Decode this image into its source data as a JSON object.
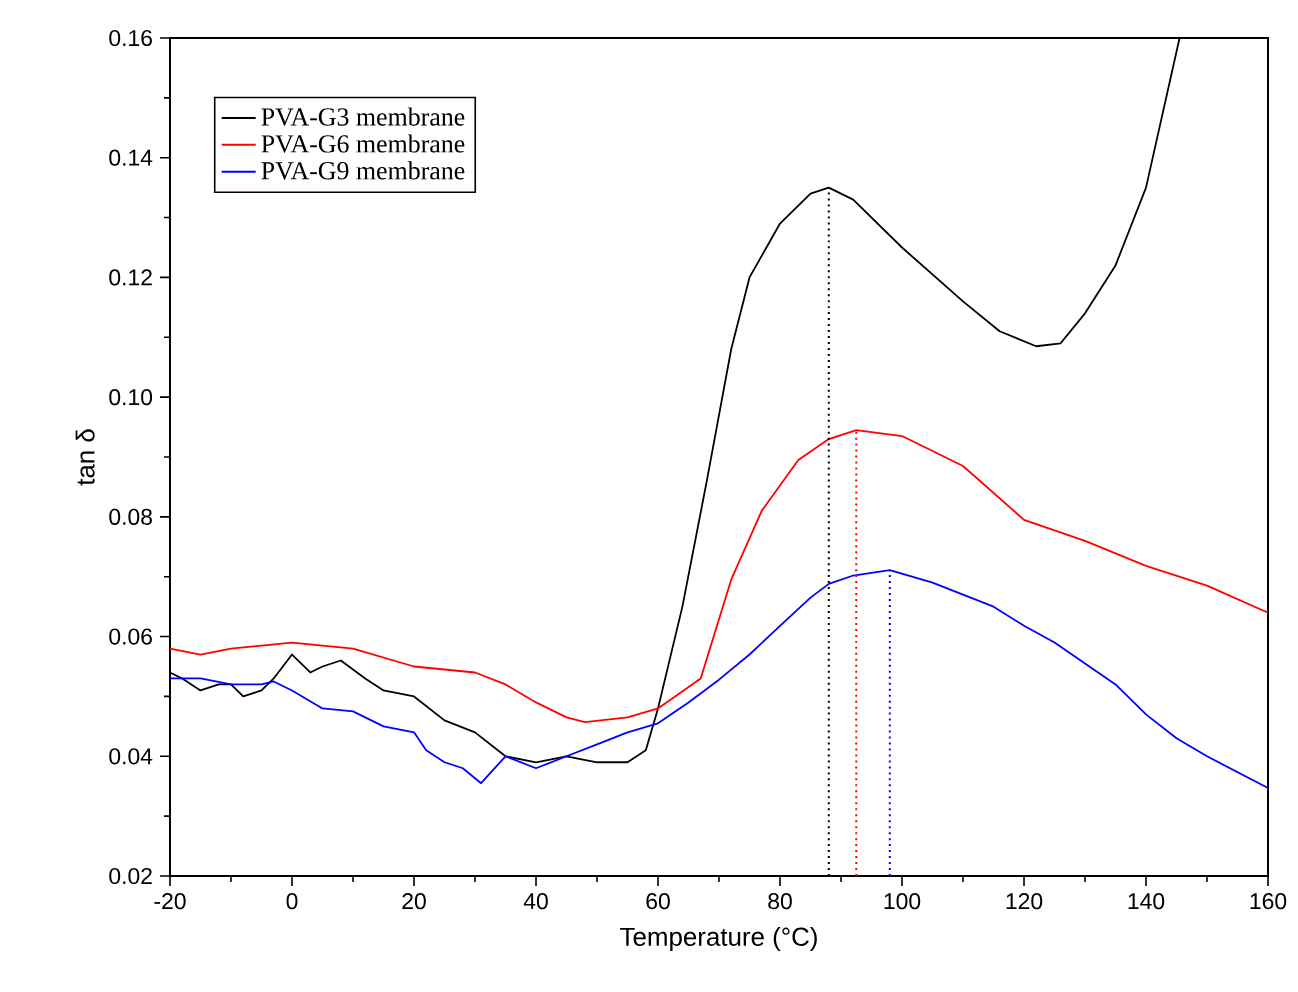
{
  "chart_data": {
    "type": "line",
    "xlabel": "Temperature (°C)",
    "ylabel": "tan δ",
    "xlim": [
      -20,
      160
    ],
    "ylim": [
      0.02,
      0.16
    ],
    "xticks": [
      -20,
      0,
      20,
      40,
      60,
      80,
      100,
      120,
      140,
      160
    ],
    "yticks": [
      0.02,
      0.04,
      0.06,
      0.08,
      {
        "value": 0.1,
        "label": "0.10"
      },
      0.12,
      0.14,
      0.16
    ],
    "legend": "top left",
    "grid": false,
    "line_style": "solid",
    "series": [
      {
        "name": "PVA-G3 membrane",
        "color": "#000000",
        "x": [
          -20,
          -18,
          -15,
          -12,
          -10,
          -8,
          -5,
          -3,
          0,
          3,
          5,
          8,
          12,
          15,
          20,
          25,
          30,
          35,
          40,
          45,
          50,
          55,
          58,
          60,
          64,
          68,
          72,
          75,
          80,
          85,
          88,
          92,
          100,
          110,
          116,
          122,
          126,
          130,
          135,
          140,
          145.5
        ],
        "values": [
          0.054,
          0.053,
          0.051,
          0.052,
          0.052,
          0.05,
          0.051,
          0.053,
          0.057,
          0.054,
          0.055,
          0.056,
          0.053,
          0.051,
          0.05,
          0.046,
          0.044,
          0.04,
          0.039,
          0.04,
          0.039,
          0.039,
          0.041,
          0.048,
          0.065,
          0.086,
          0.108,
          0.12,
          0.129,
          0.134,
          0.135,
          0.133,
          0.125,
          0.116,
          0.111,
          0.1085,
          0.109,
          0.114,
          0.122,
          0.135,
          0.16
        ]
      },
      {
        "name": "PVA-G6 membrane",
        "color": "#ff0000",
        "x": [
          -20,
          -15,
          -10,
          0,
          5,
          10,
          20,
          30,
          35,
          40,
          45,
          48,
          55,
          60,
          67,
          72,
          77,
          83,
          88,
          92.5,
          100,
          110,
          120,
          130,
          140,
          150,
          160
        ],
        "values": [
          0.058,
          0.057,
          0.058,
          0.059,
          0.0585,
          0.058,
          0.055,
          0.054,
          0.052,
          0.049,
          0.0465,
          0.0457,
          0.0465,
          0.048,
          0.053,
          0.0695,
          0.081,
          0.0895,
          0.093,
          0.0945,
          0.0935,
          0.0885,
          0.0795,
          0.076,
          0.0718,
          0.0685,
          0.064
        ]
      },
      {
        "name": "PVA-G9 membrane",
        "color": "#0000ff",
        "x": [
          -20,
          -15,
          -10,
          -5,
          -3,
          0,
          5,
          10,
          15,
          20,
          22,
          25,
          28,
          31,
          35,
          40,
          45,
          50,
          55,
          60,
          65,
          70,
          75,
          80,
          85,
          88,
          92,
          98,
          105,
          115,
          120,
          125,
          135,
          140,
          145,
          150,
          160
        ],
        "values": [
          0.053,
          0.053,
          0.052,
          0.052,
          0.0525,
          0.051,
          0.048,
          0.0475,
          0.045,
          0.044,
          0.041,
          0.039,
          0.038,
          0.0355,
          0.04,
          0.038,
          0.04,
          0.042,
          0.044,
          0.0455,
          0.049,
          0.0528,
          0.057,
          0.0618,
          0.0665,
          0.0688,
          0.0702,
          0.0711,
          0.069,
          0.065,
          0.0618,
          0.059,
          0.052,
          0.047,
          0.043,
          0.04,
          0.0347
        ]
      }
    ],
    "ref_lines": [
      {
        "axis": "x",
        "value": 88,
        "color": "#000000",
        "line_style": "dotted"
      },
      {
        "axis": "x",
        "value": 92.5,
        "color": "#ff0000",
        "line_style": "dotted"
      },
      {
        "axis": "x",
        "value": 98,
        "color": "#0000ff",
        "line_style": "dotted"
      }
    ]
  }
}
